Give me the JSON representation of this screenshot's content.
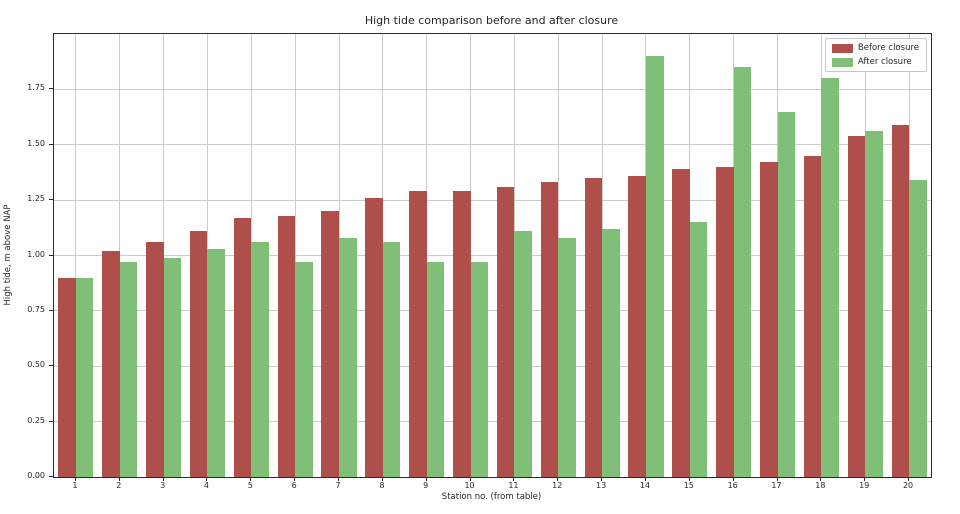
{
  "figure": {
    "background": "#ffffff"
  },
  "chart_data": {
    "type": "bar",
    "title": "High tide comparison before and after closure",
    "xlabel": "Station no. (from table)",
    "ylabel": "High tide, m above NAP",
    "categories": [
      "1",
      "2",
      "3",
      "4",
      "5",
      "6",
      "7",
      "8",
      "9",
      "10",
      "11",
      "12",
      "13",
      "14",
      "15",
      "16",
      "17",
      "18",
      "19",
      "20"
    ],
    "series": [
      {
        "name": "Before closure",
        "color": "#ae4f4c",
        "values": [
          0.9,
          1.02,
          1.06,
          1.11,
          1.17,
          1.18,
          1.2,
          1.26,
          1.29,
          1.29,
          1.31,
          1.33,
          1.35,
          1.36,
          1.39,
          1.4,
          1.42,
          1.45,
          1.54,
          1.59
        ]
      },
      {
        "name": "After closure",
        "color": "#7fbf77",
        "values": [
          0.9,
          0.97,
          0.99,
          1.03,
          1.06,
          0.97,
          1.08,
          1.06,
          0.97,
          0.97,
          1.11,
          1.08,
          1.12,
          1.9,
          1.15,
          1.85,
          1.65,
          1.8,
          1.56,
          1.34
        ]
      }
    ],
    "ylim": [
      0,
      2
    ],
    "ytick_labels": [
      "0.00",
      "0.25",
      "0.50",
      "0.75",
      "1.00",
      "1.25",
      "1.50",
      "1.75"
    ],
    "ytick_values": [
      0,
      0.25,
      0.5,
      0.75,
      1.0,
      1.25,
      1.5,
      1.75
    ],
    "grid": true,
    "grid_color": "#cccccc",
    "spine_color": "#2b2b2b",
    "legend_position": "upper right",
    "bar_width_fraction": 0.4
  }
}
